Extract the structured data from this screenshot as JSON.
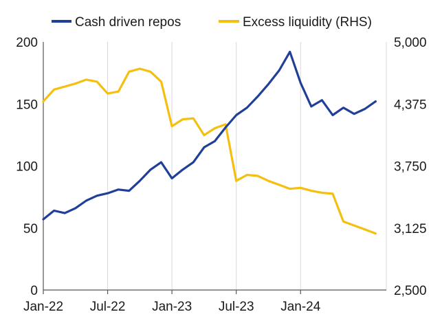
{
  "chart_data": {
    "type": "line",
    "title": "",
    "xlabel": "",
    "ylabel": "",
    "y2label": "",
    "x_ticks": [
      "Jan-22",
      "Jul-22",
      "Jan-23",
      "Jul-23",
      "Jan-24"
    ],
    "y_ticks_left": [
      "0",
      "50",
      "100",
      "150",
      "200"
    ],
    "y_ticks_right": [
      "2,500",
      "3,125",
      "3,750",
      "4,375",
      "5,000"
    ],
    "ylim": [
      0,
      200
    ],
    "y2lim": [
      2500,
      5000
    ],
    "xlim": [
      "2022-01",
      "2024-08"
    ],
    "grid": "vertical",
    "legend_position": "top",
    "colors": {
      "repos": "#1f3f99",
      "liquidity": "#f5bf0f",
      "axis": "#555555",
      "grid": "#d9d9d9"
    },
    "series": [
      {
        "name": "Cash driven repos",
        "axis": "left",
        "x": [
          "2022-01",
          "2022-02",
          "2022-03",
          "2022-04",
          "2022-05",
          "2022-06",
          "2022-07",
          "2022-08",
          "2022-09",
          "2022-10",
          "2022-11",
          "2022-12",
          "2023-01",
          "2023-02",
          "2023-03",
          "2023-04",
          "2023-05",
          "2023-06",
          "2023-07",
          "2023-08",
          "2023-09",
          "2023-10",
          "2023-11",
          "2023-12",
          "2024-01",
          "2024-02",
          "2024-03",
          "2024-04",
          "2024-05",
          "2024-06",
          "2024-07",
          "2024-08"
        ],
        "values": [
          57,
          64,
          62,
          66,
          72,
          76,
          78,
          81,
          80,
          88,
          97,
          103,
          90,
          97,
          103,
          115,
          120,
          131,
          141,
          147,
          156,
          166,
          177,
          192,
          167,
          148,
          153,
          141,
          147,
          142,
          146,
          152
        ]
      },
      {
        "name": "Excess liquidity (RHS)",
        "axis": "right",
        "x": [
          "2022-01",
          "2022-02",
          "2022-03",
          "2022-04",
          "2022-05",
          "2022-06",
          "2022-07",
          "2022-08",
          "2022-09",
          "2022-10",
          "2022-11",
          "2022-12",
          "2023-01",
          "2023-02",
          "2023-03",
          "2023-04",
          "2023-05",
          "2023-06",
          "2023-07",
          "2023-08",
          "2023-09",
          "2023-10",
          "2023-11",
          "2023-12",
          "2024-01",
          "2024-02",
          "2024-03",
          "2024-04",
          "2024-05",
          "2024-06",
          "2024-07",
          "2024-08"
        ],
        "values": [
          4400,
          4520,
          4550,
          4580,
          4620,
          4600,
          4480,
          4500,
          4700,
          4730,
          4700,
          4600,
          4150,
          4220,
          4230,
          4060,
          4130,
          4170,
          3600,
          3660,
          3650,
          3600,
          3560,
          3520,
          3530,
          3500,
          3480,
          3470,
          3190,
          3150,
          3110,
          3070
        ]
      }
    ]
  }
}
